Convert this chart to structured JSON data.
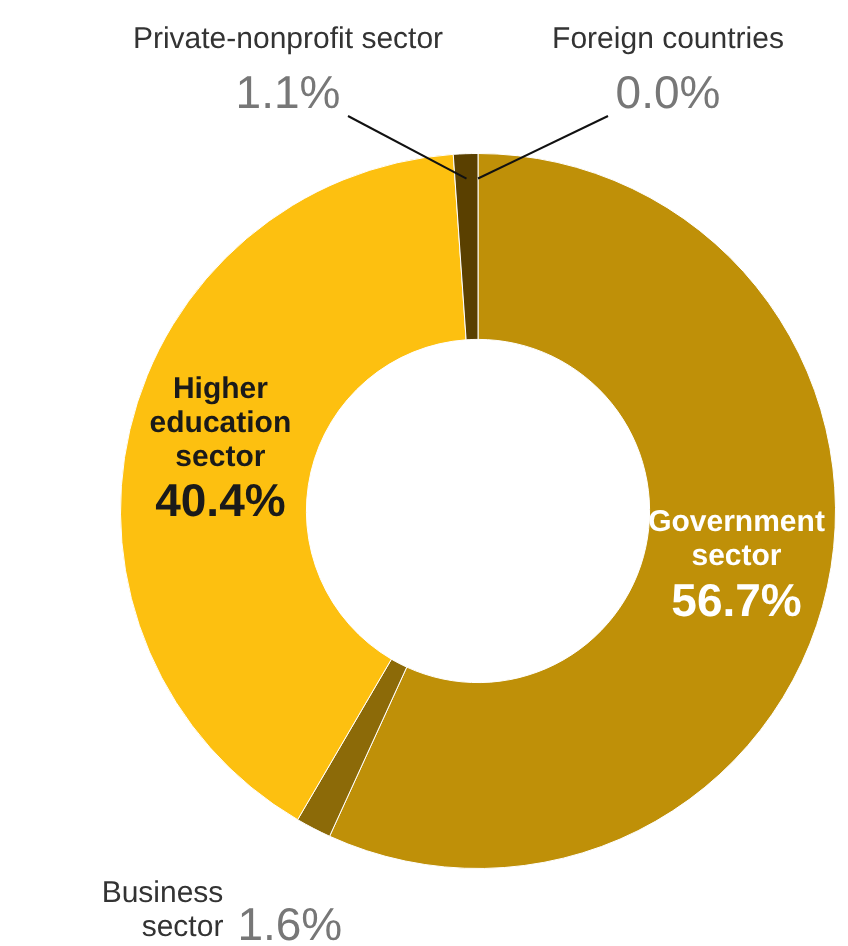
{
  "chart_data": {
    "type": "donut",
    "categories": [
      "Government sector",
      "Business sector",
      "Higher education sector",
      "Private-nonprofit sector",
      "Foreign countries"
    ],
    "values": [
      56.7,
      1.6,
      40.4,
      1.1,
      0.0
    ],
    "value_labels": [
      "56.7%",
      "1.6%",
      "40.4%",
      "1.1%",
      "0.0%"
    ],
    "colors": [
      "#bf9008",
      "#8c6a08",
      "#fdc010",
      "#5a4000",
      "#3a2a00"
    ],
    "legend": false
  }
}
